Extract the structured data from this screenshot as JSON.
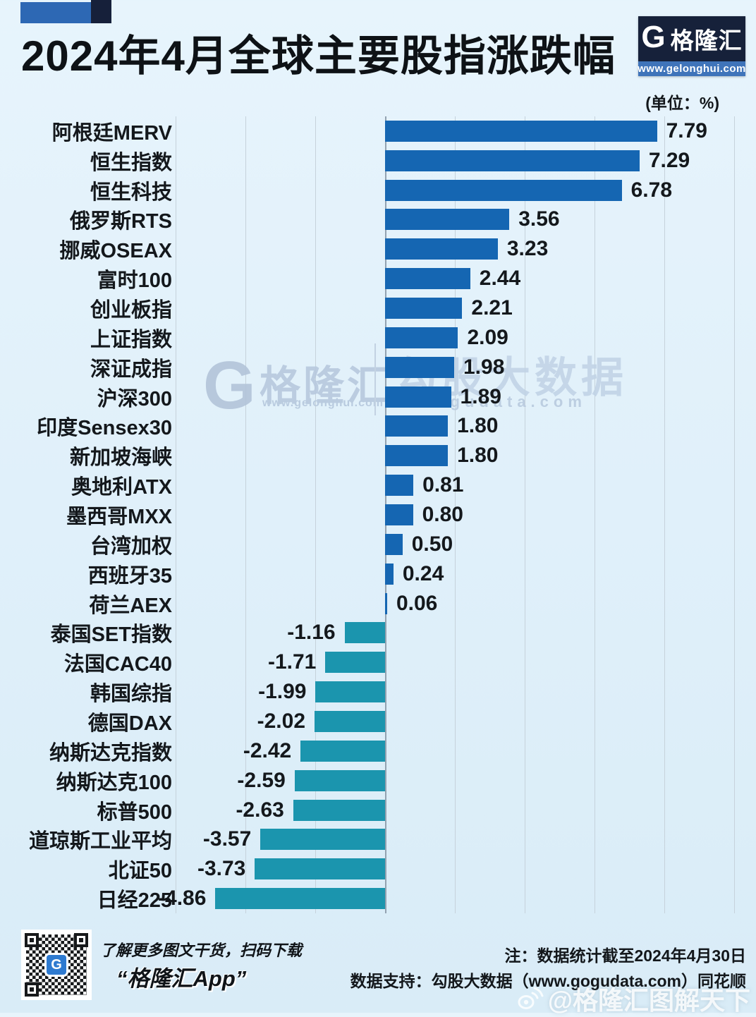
{
  "header": {
    "title": "2024年4月全球主要股指涨跌幅",
    "unit_label": "(单位：%)",
    "logo": {
      "g_glyph": "G",
      "brand": "格隆汇",
      "url": "www.gelonghui.com"
    }
  },
  "watermark_center": {
    "g_glyph": "G",
    "brand": "格隆汇",
    "brand_url": "www.gelonghui.com",
    "big_text": "勾股大数据",
    "url_text": "ogudata.com"
  },
  "chart_data": {
    "type": "bar",
    "orientation": "horizontal",
    "title": "2024年4月全球主要股指涨跌幅",
    "unit": "%",
    "xlim": [
      -6,
      10
    ],
    "grid_step": 2,
    "grid": true,
    "value_label_decimals": 2,
    "positive_color": "#1566b2",
    "negative_color": "#1b95ae",
    "categories": [
      "阿根廷MERV",
      "恒生指数",
      "恒生科技",
      "俄罗斯RTS",
      "挪威OSEAX",
      "富时100",
      "创业板指",
      "上证指数",
      "深证成指",
      "沪深300",
      "印度Sensex30",
      "新加坡海峡",
      "奥地利ATX",
      "墨西哥MXX",
      "台湾加权",
      "西班牙35",
      "荷兰AEX",
      "泰国SET指数",
      "法国CAC40",
      "韩国综指",
      "德国DAX",
      "纳斯达克指数",
      "纳斯达克100",
      "标普500",
      "道琼斯工业平均",
      "北证50",
      "日经225"
    ],
    "values": [
      7.79,
      7.29,
      6.78,
      3.56,
      3.23,
      2.44,
      2.21,
      2.09,
      1.98,
      1.89,
      1.8,
      1.8,
      0.81,
      0.8,
      0.5,
      0.24,
      0.06,
      -1.16,
      -1.71,
      -1.99,
      -2.02,
      -2.42,
      -2.59,
      -2.63,
      -3.57,
      -3.73,
      -4.86
    ]
  },
  "footer": {
    "qr_caption_line1": "了解更多图文干货，扫码下载",
    "qr_caption_line2": "“格隆汇App”",
    "note_line1": "注：数据统计截至2024年4月30日",
    "note_line2": "数据支持：勾股大数据（www.gogudata.com）同花顺",
    "weibo_watermark": "@格隆汇图解天下"
  },
  "colors": {
    "background": "#e0f0fa",
    "positive_bar": "#1566b2",
    "negative_bar": "#1b95ae",
    "gridline": "#c6d2db",
    "zero_line": "#93a2b0",
    "logo_navy": "#16213a",
    "logo_blue_strip": "#3f74ba",
    "deco_blue": "#2d68b4",
    "deco_navy": "#16203a"
  }
}
